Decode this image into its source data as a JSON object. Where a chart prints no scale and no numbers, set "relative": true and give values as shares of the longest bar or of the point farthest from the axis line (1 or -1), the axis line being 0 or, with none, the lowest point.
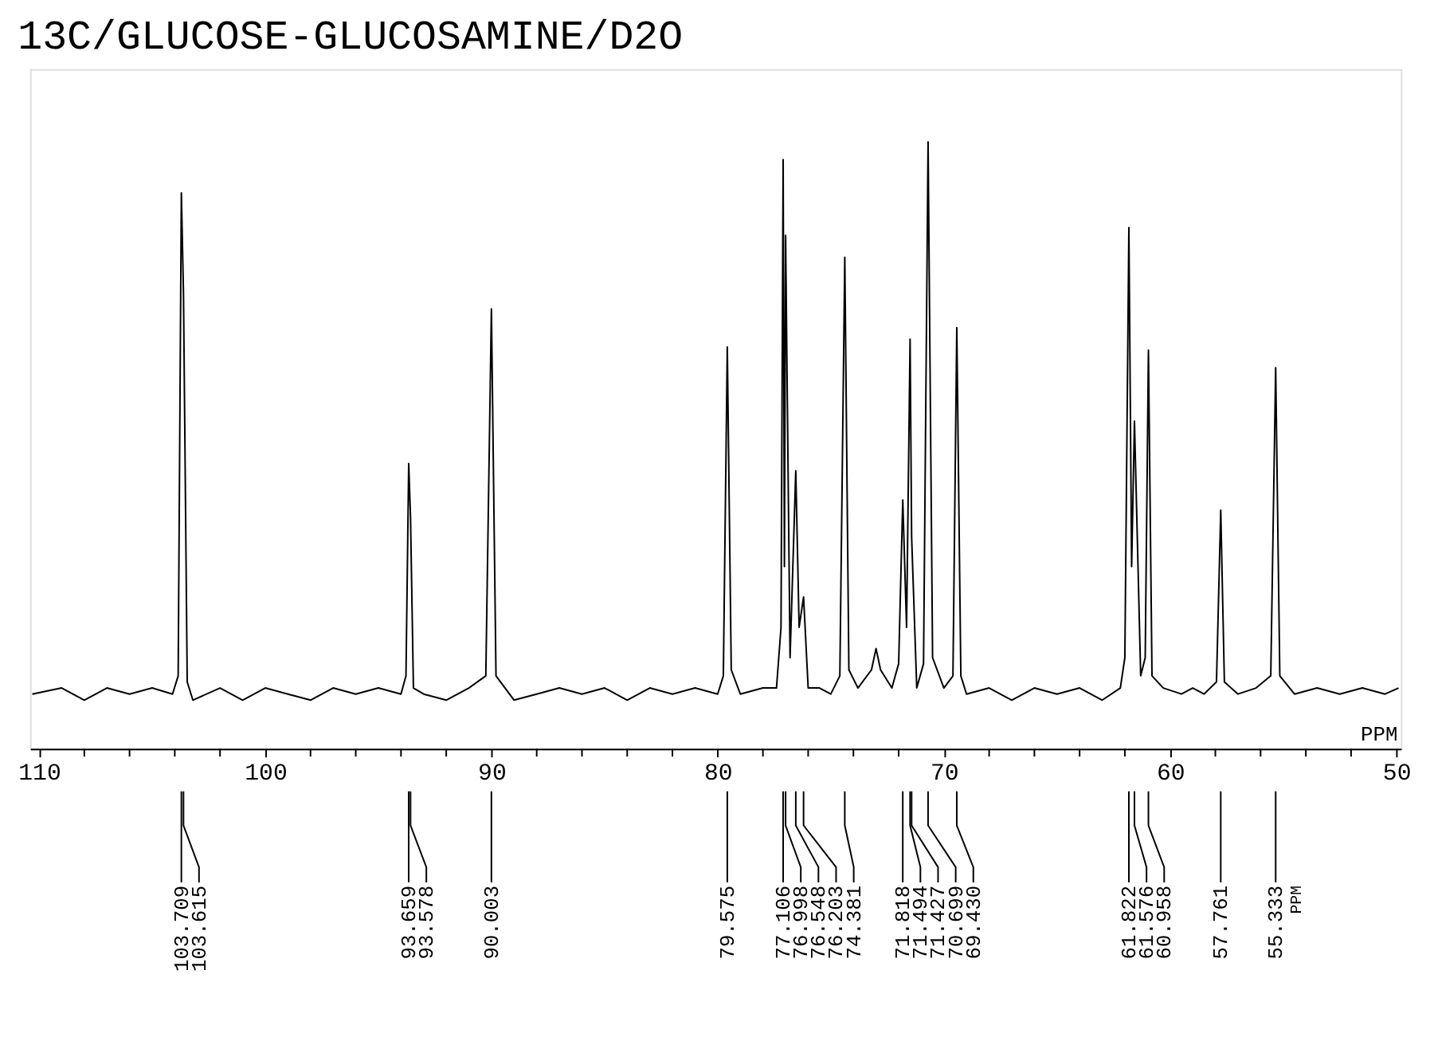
{
  "chart_data": {
    "type": "line",
    "title": "13C/GLUCOSE-GLUCOSAMINE/D2O",
    "xlabel": "PPM",
    "relative": true,
    "grid": false,
    "marker": "none",
    "line_style": "solid",
    "tick_labels": "x",
    "xlim": [
      110.4,
      49.8
    ],
    "xticks": [
      110,
      {
        "value": 108,
        "label": null
      },
      {
        "value": 106,
        "label": null
      },
      {
        "value": 104,
        "label": null
      },
      {
        "value": 102,
        "label": null
      },
      100,
      {
        "value": 98,
        "label": null
      },
      {
        "value": 96,
        "label": null
      },
      {
        "value": 94,
        "label": null
      },
      {
        "value": 92,
        "label": null
      },
      90,
      {
        "value": 88,
        "label": null
      },
      {
        "value": 86,
        "label": null
      },
      {
        "value": 84,
        "label": null
      },
      {
        "value": 82,
        "label": null
      },
      80,
      {
        "value": 78,
        "label": null
      },
      {
        "value": 76,
        "label": null
      },
      {
        "value": 74,
        "label": null
      },
      {
        "value": 72,
        "label": null
      },
      70,
      {
        "value": 68,
        "label": null
      },
      {
        "value": 66,
        "label": null
      },
      {
        "value": 64,
        "label": null
      },
      {
        "value": 62,
        "label": null
      },
      60,
      {
        "value": 58,
        "label": null
      },
      {
        "value": 56,
        "label": null
      },
      {
        "value": 54,
        "label": null
      },
      {
        "value": 52,
        "label": null
      },
      50
    ],
    "series": [
      {
        "color": "#000000",
        "x": [
          110.3,
          109,
          108,
          107,
          106,
          105,
          104.1,
          103.85,
          103.709,
          103.615,
          103.45,
          103.2,
          102,
          101,
          100,
          99,
          98,
          97,
          96,
          95,
          94,
          93.78,
          93.659,
          93.578,
          93.45,
          93,
          92,
          91,
          90.25,
          90.003,
          89.8,
          89,
          88,
          87,
          86,
          85,
          84,
          83,
          82,
          81,
          80,
          79.75,
          79.575,
          79.4,
          79,
          78,
          77.4,
          77.2,
          77.106,
          77.05,
          76.998,
          76.8,
          76.548,
          76.4,
          76.203,
          76.0,
          75.5,
          75,
          74.6,
          74.381,
          74.2,
          73.8,
          73.2,
          73.0,
          72.8,
          72.3,
          72.0,
          71.818,
          71.65,
          71.494,
          71.427,
          71.2,
          70.9,
          70.699,
          70.5,
          70.0,
          69.6,
          69.43,
          69.25,
          69,
          68,
          67,
          66,
          65,
          64,
          63,
          62.2,
          62.0,
          61.822,
          61.7,
          61.576,
          61.3,
          61.1,
          60.958,
          60.8,
          60.3,
          59.5,
          59,
          58.5,
          57.95,
          57.761,
          57.6,
          57,
          56.2,
          55.55,
          55.333,
          55.15,
          54.5,
          53.5,
          52.5,
          51.5,
          50.5,
          49.9
        ],
        "values": [
          0.09,
          0.1,
          0.08,
          0.1,
          0.09,
          0.1,
          0.09,
          0.12,
          0.916,
          0.75,
          0.11,
          0.08,
          0.1,
          0.08,
          0.1,
          0.09,
          0.08,
          0.1,
          0.09,
          0.1,
          0.09,
          0.12,
          0.47,
          0.38,
          0.1,
          0.09,
          0.08,
          0.1,
          0.12,
          0.725,
          0.12,
          0.08,
          0.09,
          0.1,
          0.09,
          0.1,
          0.08,
          0.1,
          0.09,
          0.1,
          0.09,
          0.12,
          0.662,
          0.13,
          0.09,
          0.1,
          0.1,
          0.2,
          0.971,
          0.3,
          0.846,
          0.15,
          0.458,
          0.2,
          0.25,
          0.1,
          0.1,
          0.09,
          0.12,
          0.81,
          0.13,
          0.1,
          0.13,
          0.165,
          0.13,
          0.1,
          0.14,
          0.41,
          0.2,
          0.675,
          0.35,
          0.1,
          0.14,
          1.0,
          0.15,
          0.1,
          0.12,
          0.694,
          0.12,
          0.09,
          0.1,
          0.08,
          0.1,
          0.09,
          0.1,
          0.08,
          0.1,
          0.15,
          0.859,
          0.3,
          0.54,
          0.12,
          0.15,
          0.657,
          0.12,
          0.1,
          0.09,
          0.1,
          0.09,
          0.11,
          0.393,
          0.11,
          0.09,
          0.1,
          0.12,
          0.628,
          0.12,
          0.09,
          0.1,
          0.09,
          0.1,
          0.09,
          0.1
        ]
      }
    ],
    "annotations": [
      {
        "text": "103.709",
        "x": 103.709
      },
      {
        "text": "103.615",
        "x": 103.615
      },
      {
        "text": "93.659",
        "x": 93.659
      },
      {
        "text": "93.578",
        "x": 93.578
      },
      {
        "text": "90.003",
        "x": 90.003
      },
      {
        "text": "79.575",
        "x": 79.575
      },
      {
        "text": "77.106",
        "x": 77.106
      },
      {
        "text": "76.998",
        "x": 76.998
      },
      {
        "text": "76.548",
        "x": 76.548
      },
      {
        "text": "76.203",
        "x": 76.203
      },
      {
        "text": "74.381",
        "x": 74.381
      },
      {
        "text": "71.818",
        "x": 71.818
      },
      {
        "text": "71.494",
        "x": 71.494
      },
      {
        "text": "71.427",
        "x": 71.427
      },
      {
        "text": "70.699",
        "x": 70.699
      },
      {
        "text": "69.430",
        "x": 69.43
      },
      {
        "text": "61.822",
        "x": 61.822
      },
      {
        "text": "61.576",
        "x": 61.576
      },
      {
        "text": "60.958",
        "x": 60.958
      },
      {
        "text": "57.761",
        "x": 57.761
      },
      {
        "text": "55.333",
        "x": 55.333
      }
    ]
  }
}
